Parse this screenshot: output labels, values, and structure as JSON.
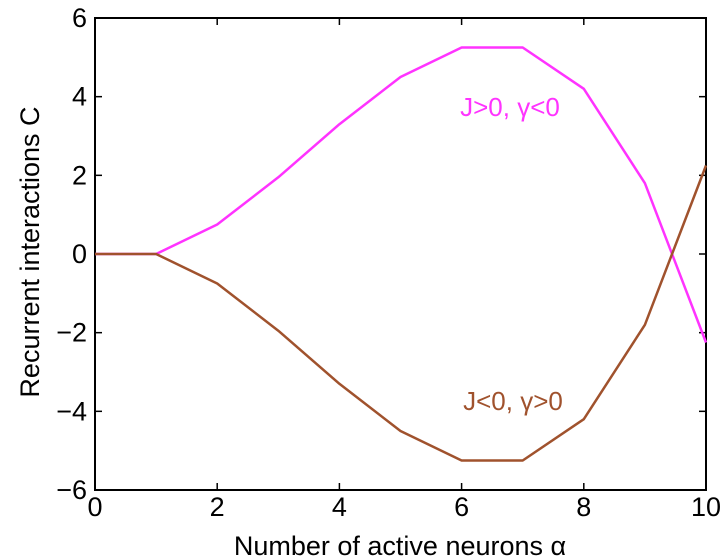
{
  "chart_data": {
    "type": "line",
    "title": "",
    "xlabel": "Number of active neurons α",
    "ylabel": "Recurrent interactions C",
    "xlim": [
      0,
      10
    ],
    "ylim": [
      -6,
      6
    ],
    "xticks": [
      "0",
      "2",
      "4",
      "6",
      "8",
      "10"
    ],
    "yticks": [
      "6",
      "4",
      "2",
      "0",
      "−2",
      "−4",
      "−6"
    ],
    "grid": false,
    "legend": "none",
    "x": [
      0,
      1,
      2,
      3,
      4,
      5,
      6,
      7,
      8,
      9,
      10
    ],
    "series": [
      {
        "name": "J>0, γ<0",
        "color": "#ff33ff",
        "values": [
          0,
          0,
          0.75,
          1.95,
          3.3,
          4.5,
          5.25,
          5.25,
          4.2,
          1.8,
          -2.25
        ]
      },
      {
        "name": "J<0, γ>0",
        "color": "#a0522d",
        "values": [
          0,
          0,
          -0.75,
          -1.95,
          -3.3,
          -4.5,
          -5.25,
          -5.25,
          -4.2,
          -1.8,
          2.25
        ]
      }
    ]
  }
}
